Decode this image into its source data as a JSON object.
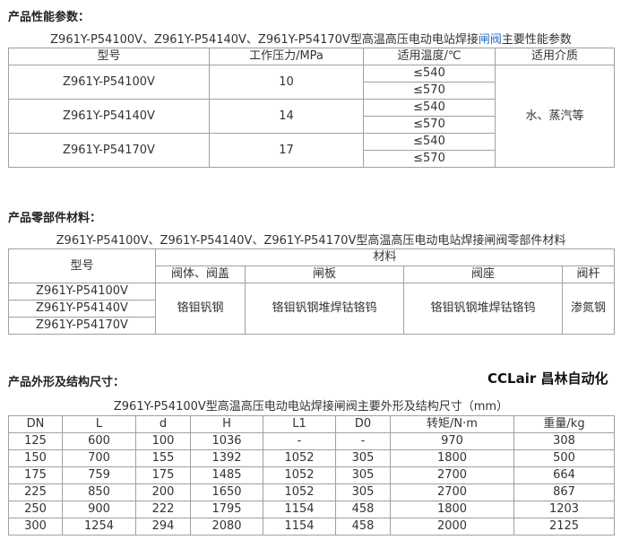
{
  "performance": {
    "title": "产品性能参数：",
    "caption_pre": "Z961Y-P54100V、Z961Y-P54140V、Z961Y-P54170V型高温高压电动电站焊接",
    "caption_link": "闸阀",
    "caption_post": "主要性能参数",
    "headers": [
      "型号",
      "工作压力/MPa",
      "适用温度/℃",
      "适用介质"
    ],
    "rows": [
      {
        "model": "Z961Y-P54100V",
        "pressure": "10",
        "temps": [
          "≤540",
          "≤570"
        ]
      },
      {
        "model": "Z961Y-P54140V",
        "pressure": "14",
        "temps": [
          "≤540",
          "≤570"
        ]
      },
      {
        "model": "Z961Y-P54170V",
        "pressure": "17",
        "temps": [
          "≤540",
          "≤570"
        ]
      }
    ],
    "medium": "水、蒸汽等"
  },
  "materials": {
    "title": "产品零部件材料：",
    "caption": "Z961Y-P54100V、Z961Y-P54140V、Z961Y-P54170V型高温高压电动电站焊接闸阀零部件材料",
    "header_model": "型号",
    "header_material": "材料",
    "sub_headers": [
      "阀体、阀盖",
      "闸板",
      "阀座",
      "阀杆"
    ],
    "models": [
      "Z961Y-P54100V",
      "Z961Y-P54140V",
      "Z961Y-P54170V"
    ],
    "values": [
      "铬钼钒钢",
      "铬钼钒钢堆焊钴铬钨",
      "铬钼钒钢堆焊钴铬钨",
      "渗氮钢"
    ]
  },
  "dimensions": {
    "title": "产品外形及结构尺寸：",
    "caption": "Z961Y-P54100V型高温高压电动电站焊接闸阀主要外形及结构尺寸（mm）",
    "headers": [
      "DN",
      "L",
      "d",
      "H",
      "L1",
      "D0",
      "转矩/N·m",
      "重量/kg"
    ],
    "rows": [
      [
        "125",
        "600",
        "100",
        "1036",
        "-",
        "-",
        "970",
        "308"
      ],
      [
        "150",
        "700",
        "155",
        "1392",
        "1052",
        "305",
        "1800",
        "500"
      ],
      [
        "175",
        "759",
        "175",
        "1485",
        "1052",
        "305",
        "2700",
        "664"
      ],
      [
        "225",
        "850",
        "200",
        "1650",
        "1052",
        "305",
        "2700",
        "867"
      ],
      [
        "250",
        "900",
        "222",
        "1795",
        "1154",
        "458",
        "1800",
        "1203"
      ],
      [
        "300",
        "1254",
        "294",
        "2080",
        "1154",
        "458",
        "2000",
        "2125"
      ]
    ]
  },
  "watermark": "CCLair 昌林自动化"
}
